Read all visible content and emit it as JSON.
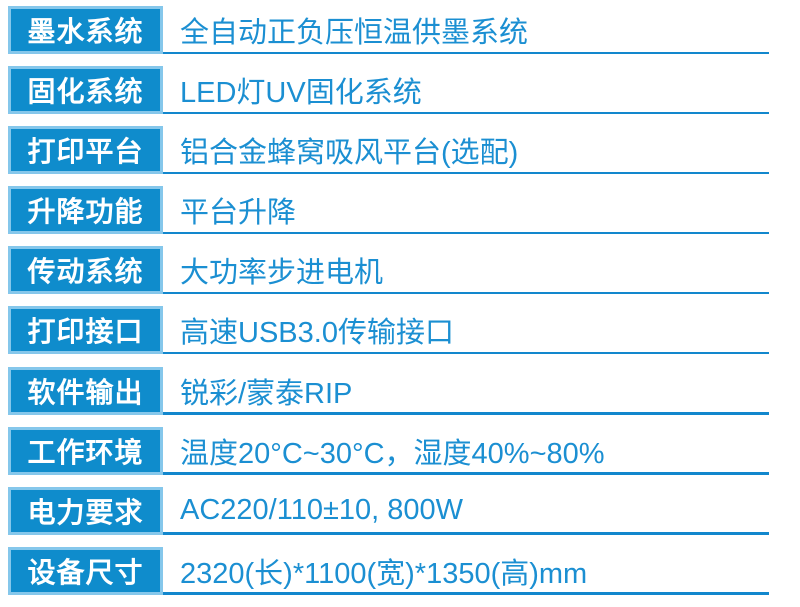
{
  "colors": {
    "label_bg": "#0F8CCC",
    "label_border": "#85C7EB",
    "label_text": "#FFFFFF",
    "value_text": "#1B8FD2",
    "divider": "#1287CD"
  },
  "spec_table": {
    "rows": [
      {
        "label": "墨水系统",
        "value": "全自动正负压恒温供墨系统"
      },
      {
        "label": "固化系统",
        "value": "LED灯UV固化系统"
      },
      {
        "label": "打印平台",
        "value": "铝合金蜂窝吸风平台(选配)"
      },
      {
        "label": "升降功能",
        "value": "平台升降"
      },
      {
        "label": "传动系统",
        "value": "大功率步进电机"
      },
      {
        "label": "打印接口",
        "value": "高速USB3.0传输接口"
      },
      {
        "label": "软件输出",
        "value": "锐彩/蒙泰RIP"
      },
      {
        "label": "工作环境",
        "value": "温度20°C~30°C，湿度40%~80%"
      },
      {
        "label": "电力要求",
        "value": "AC220/110±10, 800W"
      },
      {
        "label": "设备尺寸",
        "value": "2320(长)*1100(宽)*1350(高)mm"
      }
    ]
  }
}
